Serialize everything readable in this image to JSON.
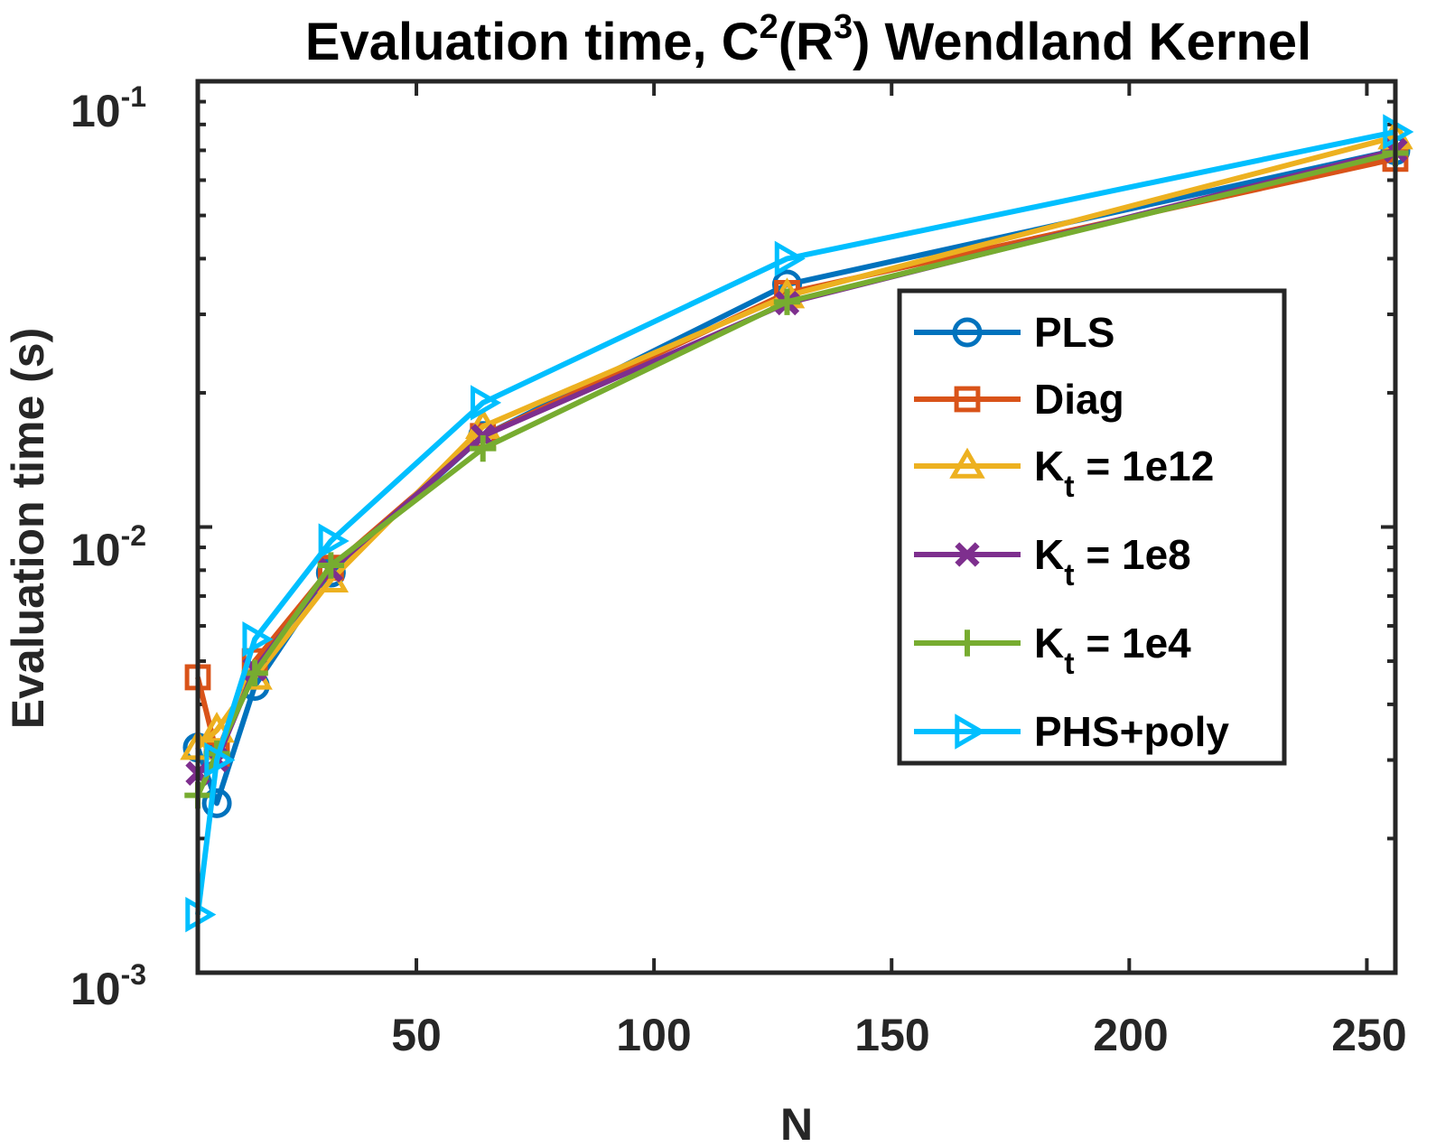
{
  "chart_data": {
    "type": "line",
    "title": {
      "prefix": "Evaluation time, C",
      "sup1": "2",
      "mid": "(R",
      "sup2": "3",
      "suffix": ") Wendland Kernel"
    },
    "xlabel": "N",
    "ylabel": "Evaluation time (s)",
    "xlim": [
      4,
      256
    ],
    "ylim": [
      0.001,
      0.1
    ],
    "yscale": "log",
    "x_ticks": [
      "50",
      "100",
      "150",
      "200",
      "250"
    ],
    "y_ticks": [
      {
        "base": "10",
        "exp": "-3"
      },
      {
        "base": "10",
        "exp": "-2"
      },
      {
        "base": "10",
        "exp": "-1"
      }
    ],
    "x": [
      4,
      8,
      16,
      32,
      64,
      128,
      256
    ],
    "legend_position": "right-center",
    "grid": false,
    "series": [
      {
        "name": "PLS",
        "label_main": "PLS",
        "label_sub": "",
        "label_tail": "",
        "color": "#0072BD",
        "marker": "circle",
        "values": [
          0.0032,
          0.0024,
          0.0044,
          0.0079,
          0.016,
          0.035,
          0.07
        ]
      },
      {
        "name": "Diag",
        "label_main": "Diag",
        "label_sub": "",
        "label_tail": "",
        "color": "#D95319",
        "marker": "square",
        "values": [
          0.0046,
          0.0031,
          0.005,
          0.0081,
          0.016,
          0.0335,
          0.067
        ]
      },
      {
        "name": "Kt = 1e12",
        "label_main": "K",
        "label_sub": "t",
        "label_tail": " = 1e12",
        "color": "#EDB120",
        "marker": "triangle-up",
        "values": [
          0.0032,
          0.0035,
          0.0046,
          0.0076,
          0.0168,
          0.033,
          0.075
        ]
      },
      {
        "name": "Kt = 1e8",
        "label_main": "K",
        "label_sub": "t",
        "label_tail": " = 1e8",
        "color": "#7E2F8E",
        "marker": "x",
        "values": [
          0.0028,
          0.003,
          0.0048,
          0.008,
          0.016,
          0.0318,
          0.07
        ]
      },
      {
        "name": "Kt = 1e4",
        "label_main": "K",
        "label_sub": "t",
        "label_tail": " = 1e4",
        "color": "#77AC30",
        "marker": "plus",
        "values": [
          0.0025,
          0.0031,
          0.0047,
          0.0082,
          0.015,
          0.032,
          0.069
        ]
      },
      {
        "name": "PHS+poly",
        "label_main": "PHS+poly",
        "label_sub": "",
        "label_tail": "",
        "color": "#00BFFF",
        "marker": "triangle-right",
        "values": [
          0.00135,
          0.003,
          0.0056,
          0.0093,
          0.019,
          0.04,
          0.077
        ]
      }
    ]
  }
}
